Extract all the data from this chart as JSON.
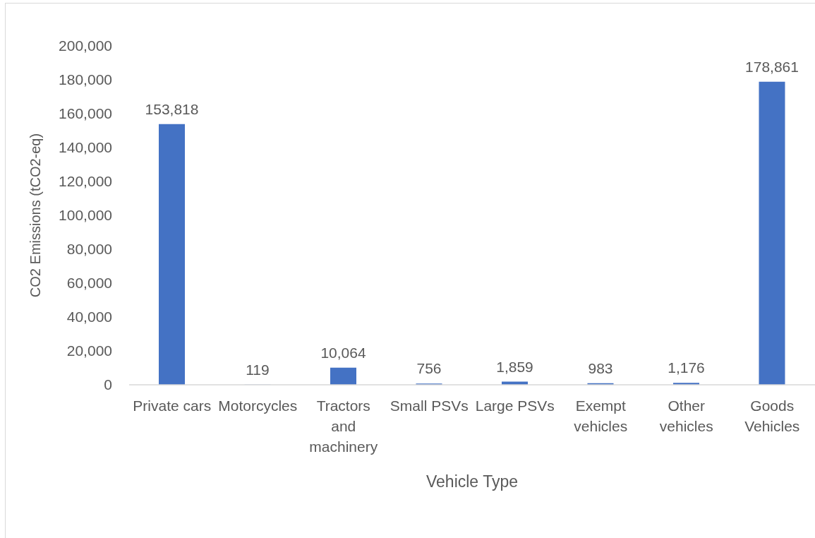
{
  "chart_data": {
    "type": "bar",
    "xlabel": "Vehicle Type",
    "ylabel": "CO2 Emissions (tCO2-eq)",
    "categories": [
      "Private cars",
      "Motorcycles",
      "Tractors and machinery",
      "Small PSVs",
      "Large PSVs",
      "Exempt vehicles",
      "Other vehicles",
      "Goods Vehicles"
    ],
    "values": [
      153818,
      119,
      10064,
      756,
      1859,
      983,
      1176,
      178861
    ],
    "value_labels": [
      "153,818",
      "119",
      "10,064",
      "756",
      "1,859",
      "983",
      "1,176",
      "178,861"
    ],
    "color": "#4472c4",
    "ylim": [
      0,
      200000
    ],
    "yticks": [
      0,
      {
        "value": 20000,
        "label": "20,000"
      },
      {
        "value": 40000,
        "label": "40,000"
      },
      {
        "value": 60000,
        "label": "60,000"
      },
      {
        "value": 80000,
        "label": "80,000"
      },
      {
        "value": 100000,
        "label": "100,000"
      },
      {
        "value": 120000,
        "label": "120,000"
      },
      {
        "value": 140000,
        "label": "140,000"
      },
      {
        "value": 160000,
        "label": "160,000"
      },
      {
        "value": 180000,
        "label": "180,000"
      },
      {
        "value": 200000,
        "label": "200,000"
      }
    ]
  }
}
